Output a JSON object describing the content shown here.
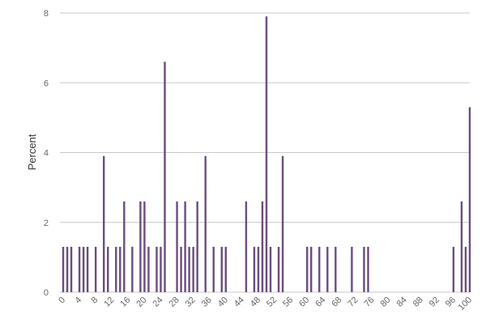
{
  "chart_data": {
    "type": "bar",
    "title": "",
    "xlabel": "",
    "ylabel": "Percent",
    "ylim": [
      0,
      8
    ],
    "yticks": [
      "0",
      "2",
      "4",
      "6",
      "8"
    ],
    "xlim": [
      0,
      100
    ],
    "xticks": [
      "0",
      "4",
      "8",
      "12",
      "16",
      "20",
      "24",
      "28",
      "32",
      "36",
      "40",
      "44",
      "48",
      "52",
      "56",
      "60",
      "64",
      "68",
      "72",
      "76",
      "80",
      "84",
      "88",
      "92",
      "96",
      "100"
    ],
    "grid": true,
    "legend": "none",
    "color": "#6a4d7e",
    "x": [
      0,
      1,
      2,
      4,
      5,
      6,
      8,
      10,
      11,
      13,
      14,
      15,
      17,
      19,
      20,
      21,
      23,
      24,
      25,
      28,
      29,
      30,
      31,
      32,
      33,
      35,
      37,
      39,
      40,
      45,
      47,
      48,
      49,
      50,
      51,
      53,
      54,
      60,
      61,
      63,
      65,
      67,
      71,
      74,
      75,
      96,
      98,
      99,
      100
    ],
    "values": [
      1.3,
      1.3,
      1.3,
      1.3,
      1.3,
      1.3,
      1.3,
      3.9,
      1.3,
      1.3,
      1.3,
      2.6,
      1.3,
      2.6,
      2.6,
      1.3,
      1.3,
      1.3,
      6.6,
      2.6,
      1.3,
      2.6,
      1.3,
      1.3,
      2.6,
      3.9,
      1.3,
      1.3,
      1.3,
      2.6,
      1.3,
      1.3,
      2.6,
      7.9,
      1.3,
      1.3,
      3.9,
      1.3,
      1.3,
      1.3,
      1.3,
      1.3,
      1.3,
      1.3,
      1.3,
      1.3,
      2.6,
      1.3,
      5.3
    ]
  }
}
